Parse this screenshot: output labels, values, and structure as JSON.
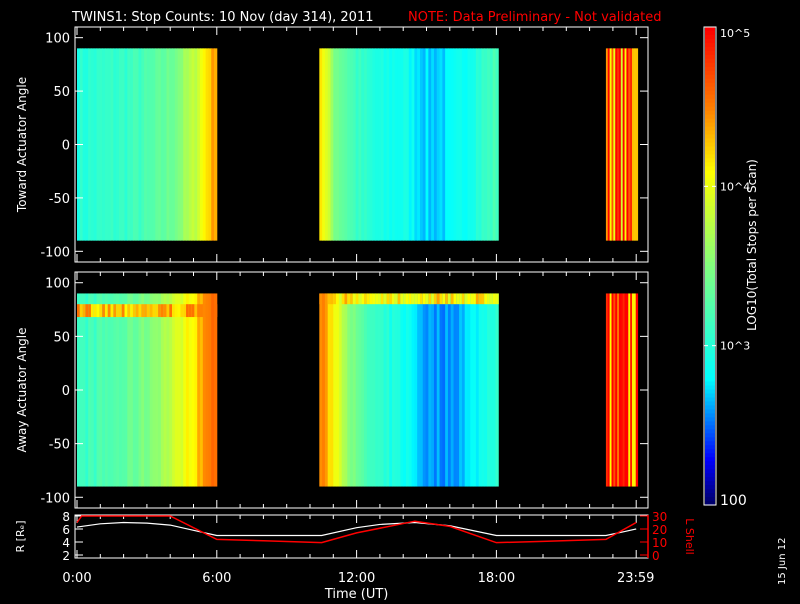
{
  "title": "TWINS1: Stop Counts: 10 Nov (day 314), 2011",
  "note": "NOTE: Data Preliminary - Not validated",
  "date_stamp": "15 Jun 12",
  "colors": {
    "note": "#ff0000",
    "lshell": "#ff0000",
    "radius": "#ffffff",
    "axis": "#ffffff"
  },
  "chart_data": [
    {
      "type": "heatmap",
      "ylabel": "Toward Actuator Angle",
      "ylim": [
        -110,
        110
      ],
      "yticks": [
        100,
        50,
        0,
        -50,
        -100
      ],
      "angle_range": [
        -90,
        90
      ],
      "blocks": [
        {
          "t": [
            0,
            1,
            2,
            3,
            4,
            5,
            5.5,
            6
          ],
          "log_counts": [
            3.0,
            3.05,
            3.1,
            3.2,
            3.4,
            3.8,
            4.2,
            4.5
          ]
        },
        {
          "t": [
            10.4,
            11,
            12,
            13,
            14,
            15,
            16,
            17,
            18
          ],
          "log_counts": [
            4.2,
            3.5,
            3.1,
            2.9,
            2.9,
            2.7,
            2.75,
            3.0,
            3.2
          ]
        },
        {
          "t": [
            22.7,
            23,
            23.5,
            24
          ],
          "log_counts": [
            4.6,
            4.7,
            4.5,
            4.7
          ]
        }
      ]
    },
    {
      "type": "heatmap",
      "ylabel": "Away Actuator Angle",
      "ylim": [
        -110,
        110
      ],
      "yticks": [
        100,
        50,
        0,
        -50,
        -100
      ],
      "angle_range": [
        -90,
        90
      ],
      "blocks": [
        {
          "t": [
            0,
            1,
            2,
            3,
            4,
            5,
            5.5,
            6
          ],
          "log_counts": [
            3.1,
            3.2,
            3.3,
            3.5,
            3.8,
            4.2,
            4.5,
            4.6
          ],
          "band": {
            "angles": [
              68,
              80
            ],
            "log_counts": 4.6
          }
        },
        {
          "t": [
            10.4,
            11,
            12,
            13,
            14,
            15,
            16,
            17,
            18
          ],
          "log_counts": [
            4.5,
            4.1,
            3.3,
            3.0,
            2.9,
            2.6,
            2.6,
            2.8,
            3.1
          ],
          "band": {
            "angles": [
              80,
              90
            ],
            "log_counts": 4.4
          }
        },
        {
          "t": [
            22.7,
            23,
            23.5,
            24
          ],
          "log_counts": [
            4.6,
            4.7,
            4.5,
            4.7
          ]
        }
      ]
    },
    {
      "type": "line",
      "xlabel": "Time (UT)",
      "xticks": [
        "0:00",
        "6:00",
        "12:00",
        "18:00",
        "23:59"
      ],
      "ylabel": "R [Rₑ]",
      "ylabel_right": "L Shell",
      "ylim": [
        2,
        8
      ],
      "yticks": [
        2,
        4,
        6,
        8
      ],
      "ylim_right": [
        0,
        30
      ],
      "yticks_right": [
        0,
        10,
        20,
        30
      ],
      "series": [
        {
          "name": "R [Rₑ]",
          "t": [
            0,
            1,
            2,
            3,
            4,
            5,
            6,
            10.5,
            12,
            13,
            14.5,
            16,
            18,
            22.7,
            23.5,
            24
          ],
          "values": [
            6.3,
            6.8,
            7.0,
            6.9,
            6.6,
            5.8,
            5.0,
            5.0,
            6.2,
            6.7,
            7.0,
            6.5,
            5.0,
            5.0,
            5.6,
            6.0
          ]
        },
        {
          "name": "L Shell",
          "t": [
            0,
            0.2,
            4,
            6,
            8,
            10.5,
            12,
            14.5,
            16,
            18,
            20,
            22.7,
            24
          ],
          "values": [
            25,
            30,
            30,
            12,
            11,
            9.5,
            17,
            26,
            22,
            9.5,
            10.5,
            12,
            25
          ]
        }
      ]
    },
    {
      "type": "colorbar",
      "label": "LOG10(Total Stops per Scan)",
      "range": [
        100,
        100000
      ],
      "tick_labels": [
        "10^5",
        "10^4",
        "10^3",
        "100"
      ]
    }
  ]
}
